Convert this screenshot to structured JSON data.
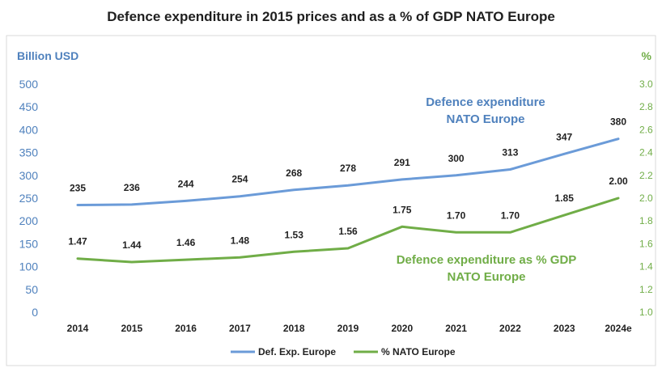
{
  "chart_data": {
    "type": "line",
    "title": "Defence expenditure in 2015 prices and as a % of GDP NATO Europe",
    "categories": [
      "2014",
      "2015",
      "2016",
      "2017",
      "2018",
      "2019",
      "2020",
      "2021",
      "2022",
      "2023",
      "2024e"
    ],
    "y_left": {
      "label": "Billion USD",
      "ylim": [
        0,
        500
      ],
      "ticks": [
        "0",
        "50",
        "100",
        "150",
        "200",
        "250",
        "300",
        "350",
        "400",
        "450",
        "500"
      ]
    },
    "y_right": {
      "label": "%",
      "ylim": [
        1.0,
        3.0
      ],
      "ticks": [
        "1.0",
        "1.2",
        "1.4",
        "1.6",
        "1.8",
        "2.0",
        "2.2",
        "2.4",
        "2.6",
        "2.8",
        "3.0"
      ]
    },
    "series": [
      {
        "name": "Def. Exp. Europe",
        "axis": "left",
        "color": "#6b9bd8",
        "values": [
          235,
          236,
          244,
          254,
          268,
          278,
          291,
          300,
          313,
          347,
          380
        ],
        "labels": [
          "235",
          "236",
          "244",
          "254",
          "268",
          "278",
          "291",
          "300",
          "313",
          "347",
          "380"
        ]
      },
      {
        "name": "% NATO Europe",
        "axis": "right",
        "color": "#70ad47",
        "values": [
          1.47,
          1.44,
          1.46,
          1.48,
          1.53,
          1.56,
          1.75,
          1.7,
          1.7,
          1.85,
          2.0
        ],
        "labels": [
          "1.47",
          "1.44",
          "1.46",
          "1.48",
          "1.53",
          "1.56",
          "1.75",
          "1.70",
          "1.70",
          "1.85",
          "2.00"
        ]
      }
    ],
    "annotations": [
      {
        "lines": [
          "Defence expenditure",
          "NATO Europe"
        ],
        "color": "#4f81bd"
      },
      {
        "lines": [
          "Defence expenditure as % GDP",
          "NATO Europe"
        ],
        "color": "#70ad47"
      }
    ],
    "grid": false,
    "legend": "bottom"
  }
}
